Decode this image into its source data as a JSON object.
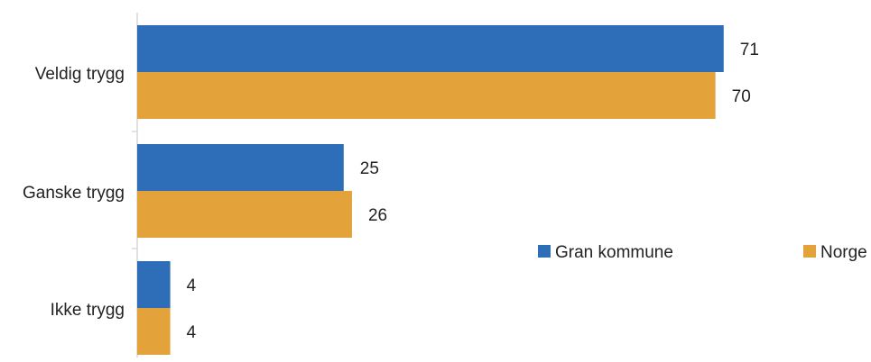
{
  "chart_data": {
    "type": "bar",
    "orientation": "horizontal",
    "categories": [
      "Veldig trygg",
      "Ganske trygg",
      "Ikke trygg"
    ],
    "series": [
      {
        "name": "Gran kommune",
        "values": [
          71,
          25,
          4
        ],
        "color": "#2E6EB9"
      },
      {
        "name": "Norge",
        "values": [
          70,
          26,
          4
        ],
        "color": "#E4A33A"
      }
    ],
    "title": "",
    "xlabel": "",
    "ylabel": "",
    "xlim": [
      0,
      79
    ],
    "grid": false,
    "legend": "right"
  }
}
